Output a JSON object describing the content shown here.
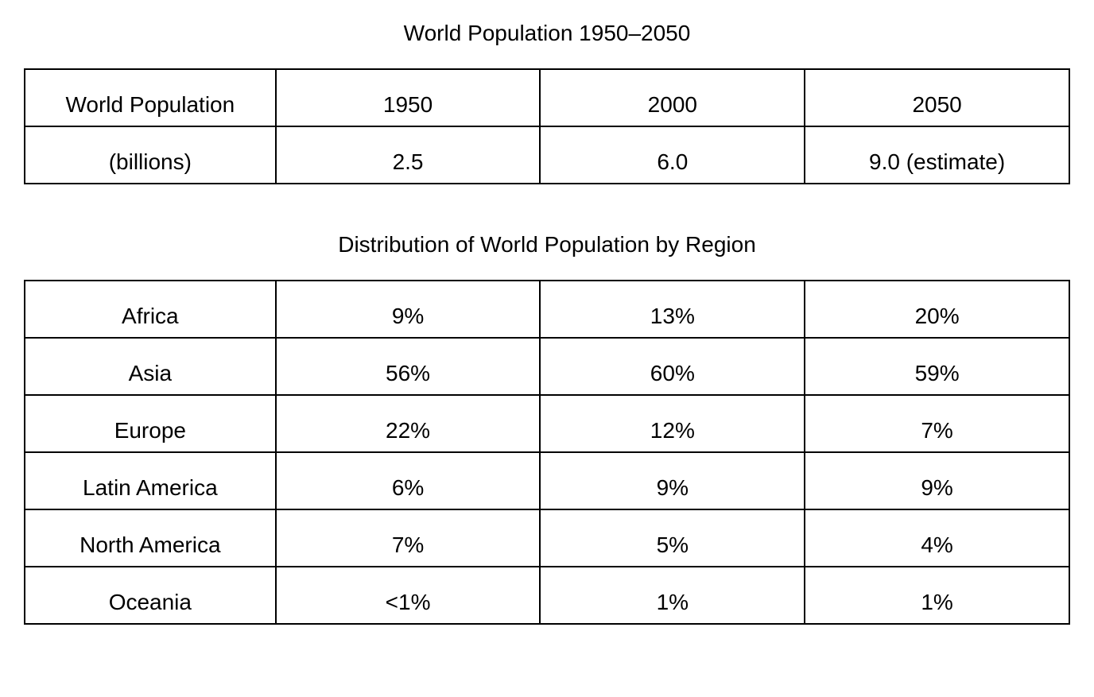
{
  "title1": "World Population 1950–2050",
  "title2": "Distribution of World Population by Region",
  "table1": {
    "type": "table",
    "border_color": "#000000",
    "background_color": "#ffffff",
    "text_color": "#000000",
    "font_size_pt": 21,
    "column_widths_pct": [
      24,
      25.3,
      25.3,
      25.3
    ],
    "cell_align": "center",
    "cell_valign": "bottom",
    "rows": [
      [
        "World Population",
        "1950",
        "2000",
        "2050"
      ],
      [
        "(billions)",
        "2.5",
        "6.0",
        "9.0 (estimate)"
      ]
    ]
  },
  "table2": {
    "type": "table",
    "border_color": "#000000",
    "background_color": "#ffffff",
    "text_color": "#000000",
    "font_size_pt": 21,
    "column_widths_pct": [
      24,
      25.3,
      25.3,
      25.3
    ],
    "cell_align": "center",
    "cell_valign": "bottom",
    "rows": [
      [
        "Africa",
        "9%",
        "13%",
        "20%"
      ],
      [
        "Asia",
        "56%",
        "60%",
        "59%"
      ],
      [
        "Europe",
        "22%",
        "12%",
        "7%"
      ],
      [
        "Latin America",
        "6%",
        "9%",
        "9%"
      ],
      [
        "North America",
        "7%",
        "5%",
        "4%"
      ],
      [
        "Oceania",
        "<1%",
        "1%",
        "1%"
      ]
    ]
  }
}
